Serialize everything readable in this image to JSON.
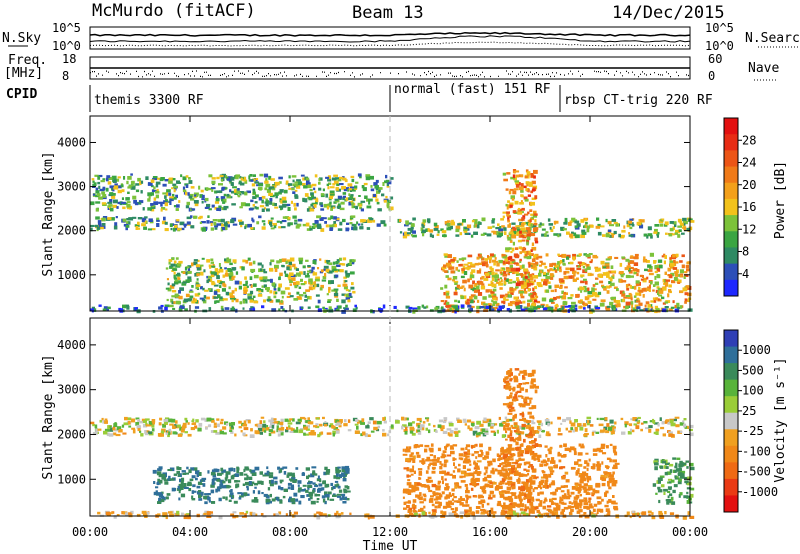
{
  "header": {
    "left": "McMurdo (fitACF)",
    "center": "Beam 13",
    "right": "14/Dec/2015"
  },
  "strips": {
    "nsky_label": "N.Sky",
    "nsky_ticks": [
      "10^5",
      "10^0"
    ],
    "nsearch_label": "N.Search",
    "nsearch_ticks": [
      "10^5",
      "10^0"
    ],
    "freq_label": "Freq.",
    "freq_unit": "[MHz]",
    "freq_ticks": [
      "18",
      "8"
    ],
    "nave_label": "Nave",
    "nave_ticks": [
      "60",
      "0"
    ],
    "cpid_label": "CPID",
    "cpid_segments": [
      {
        "label": "themis 3300 RF",
        "start_h": 0,
        "end_h": 12
      },
      {
        "label": "normal (fast) 151 RF",
        "start_h": 12,
        "end_h": 18.8
      },
      {
        "label": "rbsp CT-trig 220 RF",
        "start_h": 18.8,
        "end_h": 24
      }
    ]
  },
  "chart_data": [
    {
      "type": "heatmap",
      "title": "",
      "quantity": "Power",
      "ylabel": "Slant Range [km]",
      "xlabel": "",
      "xlim_h": [
        0,
        24
      ],
      "ylim": [
        180,
        4600
      ],
      "yticks": [
        "1000",
        "2000",
        "3000",
        "4000"
      ],
      "colorbar_label": "Power [dB]",
      "colorbar_ticks": [
        "4",
        "8",
        "12",
        "16",
        "20",
        "24",
        "28"
      ],
      "colorbar_range": [
        0,
        32
      ],
      "colorbar_colors": [
        "#1e28ff",
        "#2c4fb8",
        "#2e8a63",
        "#3aa542",
        "#7cc23a",
        "#f2c21b",
        "#f3a01b",
        "#f07a18",
        "#ec5516",
        "#e82c14",
        "#e31010"
      ],
      "bands": [
        {
          "t0": 0.0,
          "t1": 11.8,
          "r0": 2050,
          "r1": 2350,
          "level": 10
        },
        {
          "t0": 12.2,
          "t1": 24,
          "r0": 1900,
          "r1": 2300,
          "level": 12
        },
        {
          "t0": 3.0,
          "t1": 10.5,
          "r0": 400,
          "r1": 1400,
          "level": 12
        },
        {
          "t0": 14.0,
          "t1": 24,
          "r0": 200,
          "r1": 1500,
          "level": 18
        },
        {
          "t0": 16.5,
          "t1": 17.8,
          "r0": 300,
          "r1": 3400,
          "level": 20
        },
        {
          "t0": 0.0,
          "t1": 24,
          "r0": 200,
          "r1": 330,
          "level": 6
        },
        {
          "t0": 0.0,
          "t1": 12,
          "r0": 2500,
          "r1": 3300,
          "level": 10
        }
      ]
    },
    {
      "type": "heatmap",
      "title": "",
      "quantity": "Velocity",
      "ylabel": "Slant Range [km]",
      "xlabel": "Time UT",
      "xlim_h": [
        0,
        24
      ],
      "ylim": [
        180,
        4600
      ],
      "yticks": [
        "1000",
        "2000",
        "3000",
        "4000"
      ],
      "xticks": [
        "00:00",
        "04:00",
        "08:00",
        "12:00",
        "16:00",
        "20:00",
        "00:00"
      ],
      "colorbar_label": "Velocity [m s⁻¹]",
      "colorbar_ticks": [
        "1000",
        "500",
        "100",
        "25",
        "-25",
        "-100",
        "-500",
        "-1000"
      ],
      "colorbar_colors": [
        "#2f3fb5",
        "#2f6f9a",
        "#3a8a5a",
        "#58b33a",
        "#9acd38",
        "#c8c8c8",
        "#f0a020",
        "#f08818",
        "#ef6a14",
        "#ea3a14",
        "#e31010"
      ],
      "bands": [
        {
          "t0": 0.0,
          "t1": 24,
          "r0": 2000,
          "r1": 2400,
          "v": 0
        },
        {
          "t0": 2.5,
          "t1": 10.3,
          "r0": 500,
          "r1": 1300,
          "v": 300
        },
        {
          "t0": 12.5,
          "t1": 21,
          "r0": 200,
          "r1": 1800,
          "v": -200
        },
        {
          "t0": 16.5,
          "t1": 17.8,
          "r0": 300,
          "r1": 3500,
          "v": -250
        },
        {
          "t0": 22.5,
          "t1": 24,
          "r0": 500,
          "r1": 1500,
          "v": 150
        },
        {
          "t0": 0.0,
          "t1": 24,
          "r0": 180,
          "r1": 300,
          "v": -60
        }
      ]
    }
  ]
}
